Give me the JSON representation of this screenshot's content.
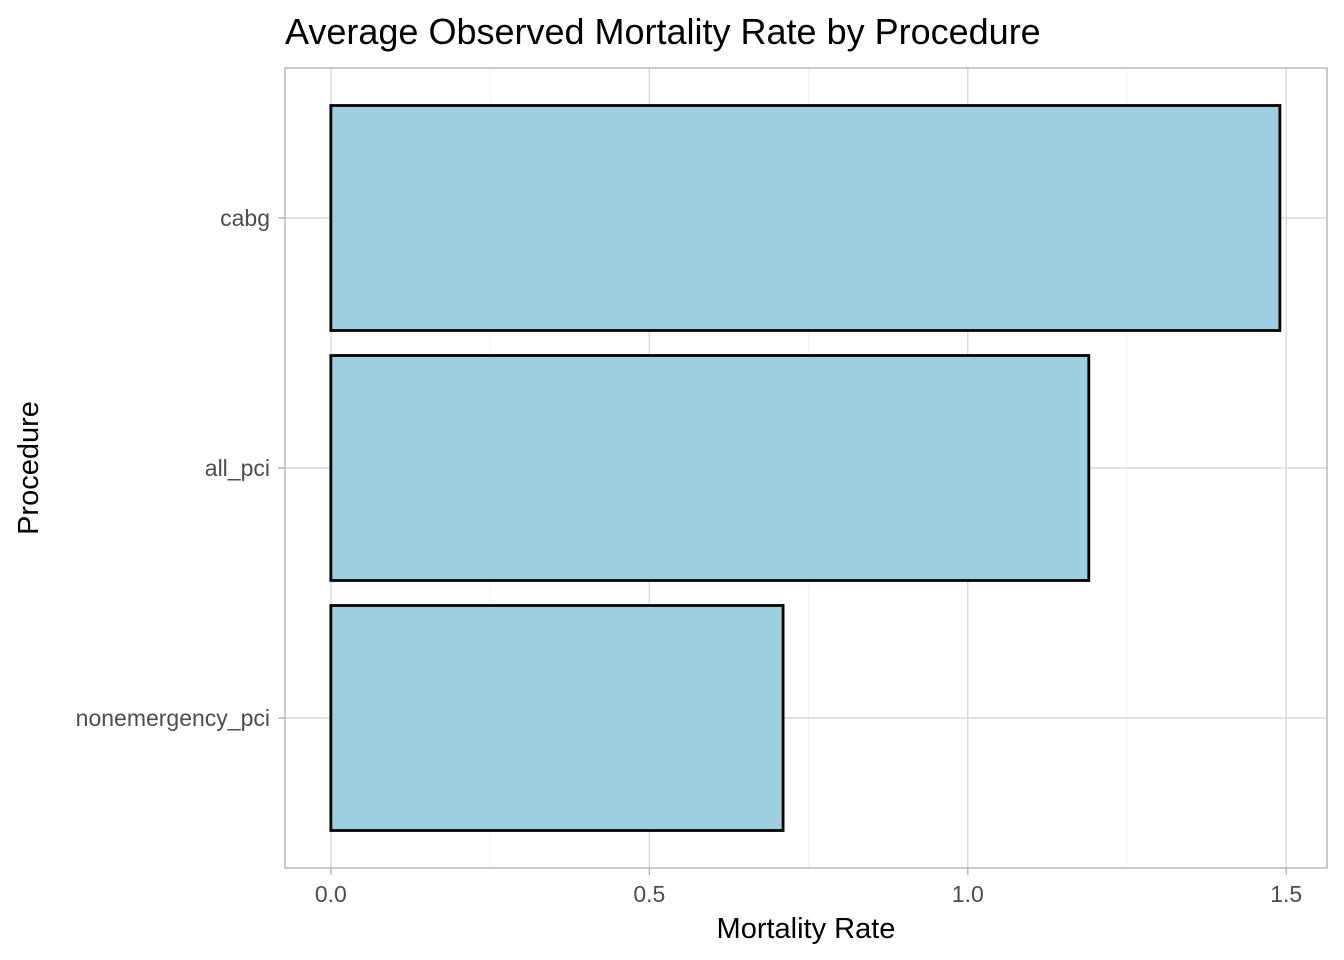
{
  "chart_data": {
    "type": "bar",
    "orientation": "horizontal",
    "title": "Average Observed Mortality Rate by Procedure",
    "xlabel": "Mortality Rate",
    "ylabel": "Procedure",
    "categories": [
      "cabg",
      "all_pci",
      "nonemergency_pci"
    ],
    "values": [
      1.49,
      1.19,
      0.71
    ],
    "xlim": [
      -0.072,
      1.564
    ],
    "x_ticks": [
      "0.0",
      "0.5",
      "1.0",
      "1.5"
    ],
    "x_tick_values": [
      0,
      0.5,
      1.0,
      1.5
    ],
    "grid": true,
    "bar_fill": "#9ecfe0",
    "bar_outline": "#000000"
  }
}
